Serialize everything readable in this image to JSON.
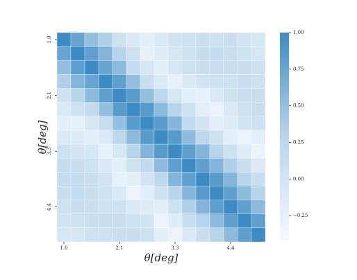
{
  "chart_data": {
    "type": "heatmap",
    "x_label": "θ[deg]",
    "y_label": "θ[deg]",
    "categories": [
      "1.0",
      null,
      null,
      null,
      "2.1",
      null,
      null,
      null,
      "3.3",
      null,
      null,
      null,
      "4.4",
      null,
      null
    ],
    "y_categories": [
      "1.0",
      null,
      null,
      null,
      "2.1",
      null,
      null,
      null,
      "3.3",
      null,
      null,
      null,
      "4.4",
      null,
      null
    ],
    "values": [
      [
        1.0,
        0.75,
        0.5,
        0.35,
        0.05,
        -0.1,
        -0.2,
        -0.1,
        0.0,
        0.05,
        0.1,
        0.05,
        0.1,
        0.0,
        -0.05
      ],
      [
        0.75,
        1.0,
        0.8,
        0.6,
        0.3,
        0.05,
        -0.25,
        -0.15,
        -0.05,
        0.05,
        0.15,
        0.15,
        0.1,
        0.05,
        -0.05
      ],
      [
        0.5,
        0.8,
        1.0,
        0.75,
        0.55,
        0.15,
        -0.05,
        -0.2,
        -0.05,
        0.05,
        0.1,
        0.1,
        0.1,
        0.1,
        0.05
      ],
      [
        0.35,
        0.6,
        0.75,
        1.0,
        0.8,
        0.5,
        0.1,
        -0.1,
        -0.25,
        -0.1,
        0.0,
        0.05,
        0.05,
        0.1,
        0.05
      ],
      [
        0.05,
        0.3,
        0.55,
        0.8,
        1.0,
        0.85,
        0.5,
        0.25,
        -0.05,
        -0.2,
        -0.25,
        -0.1,
        0.05,
        0.1,
        0.1
      ],
      [
        -0.1,
        0.05,
        0.2,
        0.5,
        0.85,
        1.0,
        0.85,
        0.55,
        0.3,
        0.05,
        -0.2,
        -0.3,
        -0.1,
        0.05,
        0.1
      ],
      [
        -0.2,
        -0.25,
        -0.05,
        0.1,
        0.5,
        0.85,
        1.0,
        0.85,
        0.6,
        0.2,
        0.0,
        -0.2,
        -0.15,
        0.0,
        0.05
      ],
      [
        -0.1,
        -0.15,
        -0.2,
        -0.1,
        0.25,
        0.55,
        0.85,
        1.0,
        0.85,
        0.55,
        0.25,
        0.05,
        -0.2,
        -0.3,
        -0.2
      ],
      [
        0.05,
        0.0,
        -0.05,
        -0.25,
        -0.05,
        0.3,
        0.6,
        0.85,
        1.0,
        0.8,
        0.6,
        0.3,
        0.05,
        -0.15,
        -0.3
      ],
      [
        0.15,
        0.1,
        0.05,
        -0.1,
        -0.2,
        0.05,
        0.2,
        0.55,
        0.8,
        1.0,
        0.8,
        0.6,
        0.35,
        0.1,
        -0.1
      ],
      [
        0.15,
        0.15,
        0.1,
        0.0,
        -0.25,
        -0.2,
        0.0,
        0.25,
        0.6,
        0.8,
        1.0,
        0.85,
        0.6,
        0.3,
        0.1
      ],
      [
        0.1,
        0.15,
        0.1,
        0.05,
        -0.1,
        -0.3,
        -0.2,
        0.05,
        0.3,
        0.6,
        0.85,
        1.0,
        0.8,
        0.55,
        0.3
      ],
      [
        0.05,
        0.1,
        0.1,
        0.05,
        0.05,
        -0.1,
        -0.15,
        -0.2,
        0.05,
        0.35,
        0.6,
        0.8,
        1.0,
        0.8,
        0.55
      ],
      [
        0.0,
        0.05,
        0.1,
        0.1,
        0.1,
        0.05,
        0.0,
        -0.3,
        -0.15,
        0.1,
        0.3,
        0.55,
        0.8,
        1.0,
        0.8
      ],
      [
        -0.05,
        -0.05,
        0.05,
        0.05,
        0.1,
        0.1,
        0.05,
        -0.2,
        -0.3,
        -0.1,
        0.1,
        0.3,
        0.55,
        0.8,
        1.0
      ]
    ],
    "zlim": [
      -0.42,
      1.0
    ],
    "zticks": [
      {
        "value": 1,
        "label": "1.00"
      },
      {
        "value": 0.75,
        "label": "0.75"
      },
      {
        "value": 0.5,
        "label": "0.50"
      },
      {
        "value": 0.25,
        "label": "0.25"
      },
      {
        "value": 0,
        "label": "0.00"
      },
      {
        "value": -0.25,
        "label": "−0.25"
      }
    ],
    "colormap": [
      "#f5f9fe",
      "#b9d6eb",
      "#3d8bc3"
    ]
  }
}
